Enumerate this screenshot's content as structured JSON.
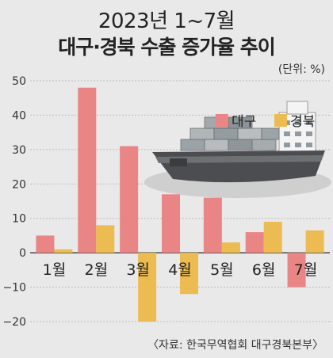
{
  "header": {
    "title_line1": "2023년 1~7월",
    "title_line2": "대구·경북 수출 증가율 추이",
    "unit": "(단위: %)"
  },
  "source": "〈자료: 한국무역협회 대구경북본부〉",
  "colors": {
    "daegu": "#e98585",
    "gyeongbuk": "#ecbc52",
    "background": "#e9e9e9"
  },
  "chart_data": {
    "type": "bar",
    "categories": [
      "1월",
      "2월",
      "3월",
      "4월",
      "5월",
      "6월",
      "7월"
    ],
    "series": [
      {
        "name": "대구",
        "values": [
          5,
          48,
          31,
          17,
          16,
          6,
          -10
        ]
      },
      {
        "name": "경북",
        "values": [
          1,
          8,
          -20,
          -12,
          3,
          9,
          6.5
        ]
      }
    ],
    "ylim": [
      -20,
      50
    ],
    "yticks": [
      -20,
      -10,
      0,
      10,
      20,
      30,
      40,
      50
    ],
    "legend_position": "top-right",
    "grid": true
  }
}
